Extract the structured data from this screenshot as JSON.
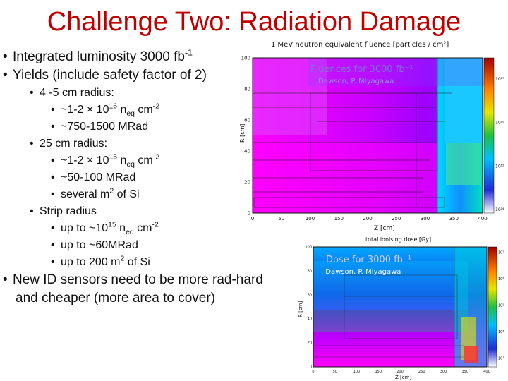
{
  "slide": {
    "title": "Challenge Two: Radiation Damage"
  },
  "bullets": [
    {
      "level": 1,
      "text": "Integrated luminosity 3000 fb",
      "sup": "-1"
    },
    {
      "level": 1,
      "text": "Yields (include safety factor of 2)"
    },
    {
      "level": 2,
      "text": "4 -5 cm radius:"
    },
    {
      "level": 3,
      "parts": [
        "~1-2 × 10",
        "16",
        " n",
        "eq",
        " cm",
        "-2"
      ]
    },
    {
      "level": 3,
      "text": "~750-1500 MRad"
    },
    {
      "level": 2,
      "text": "25 cm radius:"
    },
    {
      "level": 3,
      "parts": [
        "~1-2 × 10",
        "15",
        " n",
        "eq",
        " cm",
        "-2"
      ]
    },
    {
      "level": 3,
      "text": "~50-100 MRad"
    },
    {
      "level": 3,
      "parts": [
        "several m",
        "2",
        " of Si"
      ]
    },
    {
      "level": 2,
      "text": "Strip radius"
    },
    {
      "level": 3,
      "parts": [
        "up to ~10",
        "15",
        " n",
        "eq",
        " cm",
        "-2"
      ]
    },
    {
      "level": 3,
      "text": "up to ~60MRad"
    },
    {
      "level": 3,
      "parts": [
        "up to 200 m",
        "2",
        " of Si"
      ]
    },
    {
      "level": 1,
      "text": "New ID sensors need to be more rad-hard"
    },
    {
      "level": 0,
      "text": "and cheaper (more area to cover)"
    }
  ],
  "fluence_plot": {
    "header": "1 MeV neutron equivalent fluence  [particles / cm²]",
    "overlay_title": "Fluences for 3000 fb⁻¹",
    "credit": "I. Dawson, P. Miyagawa",
    "ylabel": "R [cm]",
    "xlabel": "Z [cm]",
    "yticks": [
      "0",
      "20",
      "40",
      "60",
      "80",
      "100"
    ],
    "xticks": [
      "0",
      "50",
      "100",
      "150",
      "200",
      "250",
      "300",
      "350",
      "400"
    ],
    "colorbar": [
      "10¹⁷",
      "10¹⁶",
      "10¹⁵",
      "10¹⁴"
    ],
    "colors": {
      "high": "#ff00ff",
      "mid": "#7a2cff",
      "low": "#00bfff"
    }
  },
  "dose_plot": {
    "header": "total ionising dose [Gy]",
    "overlay_title": "Dose for 3000 fb⁻¹",
    "credit": "I. Dawson, P. Miyagawa",
    "ylabel": "R [cm]",
    "xlabel": "Z [cm]",
    "yticks": [
      "0",
      "20",
      "40",
      "60",
      "80",
      "100"
    ],
    "xticks": [
      "0",
      "50",
      "100",
      "150",
      "200",
      "250",
      "300",
      "350",
      "400"
    ],
    "colorbar": [
      "10⁷",
      "10⁶",
      "10⁵",
      "10⁴",
      "10³"
    ]
  }
}
